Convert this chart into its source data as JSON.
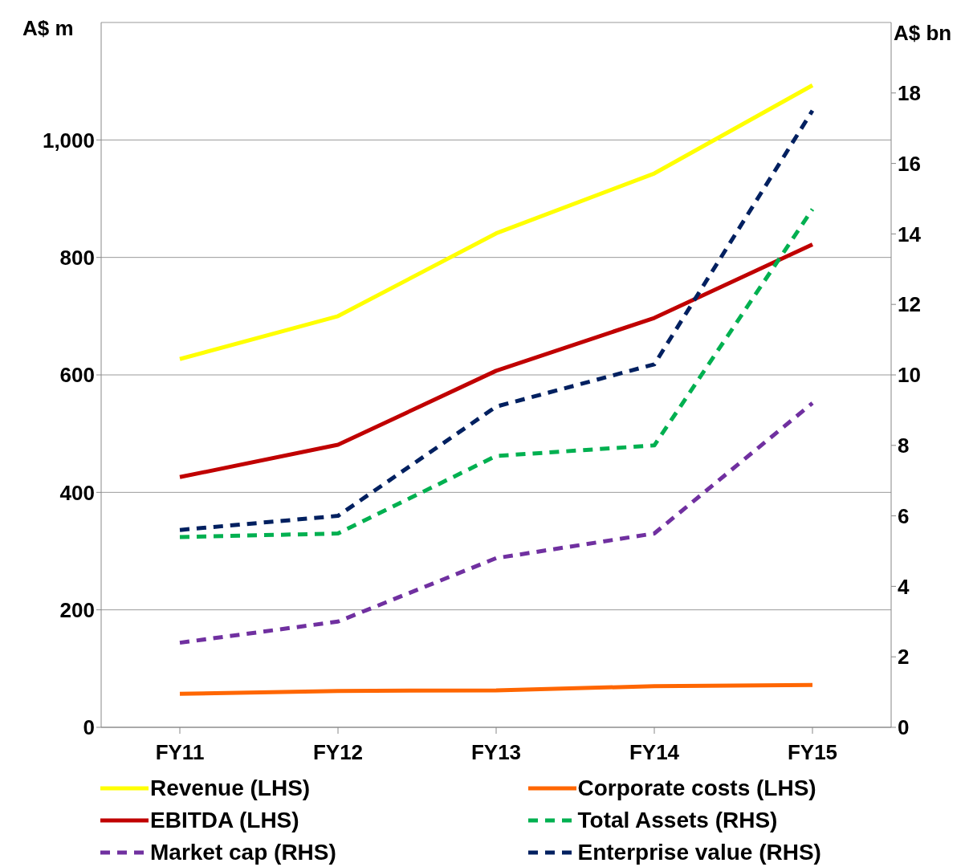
{
  "chart_data": {
    "type": "line",
    "ylabel": "A$ m",
    "y2label": "A$ bn",
    "categories": [
      "FY11",
      "FY12",
      "FY13",
      "FY14",
      "FY15"
    ],
    "series": [
      {
        "name": "Revenue (LHS)",
        "color": "#ffff00",
        "line_style": "solid",
        "values": [
          627,
          700,
          841,
          943,
          1093
        ]
      },
      {
        "name": "Corporate costs (LHS)",
        "color": "#ff6600",
        "line_style": "solid",
        "values": [
          57,
          62,
          63,
          70,
          72
        ]
      },
      {
        "name": "EBITDA (LHS)",
        "color": "#c00000",
        "line_style": "solid",
        "values": [
          426,
          481,
          607,
          697,
          822
        ]
      },
      {
        "name": "Total Assets (RHS)",
        "color": "#00b050",
        "line_style": "dashed",
        "axis": "y2",
        "values": [
          5.4,
          5.5,
          7.7,
          8.0,
          14.7
        ]
      },
      {
        "name": "Market cap (RHS)",
        "color": "#7030a0",
        "line_style": "dashed",
        "axis": "y2",
        "values": [
          2.4,
          3.0,
          4.8,
          5.5,
          9.2
        ]
      },
      {
        "name": "Enterprise value (RHS)",
        "color": "#002060",
        "line_style": "dashed",
        "axis": "y2",
        "values": [
          5.6,
          6.0,
          9.1,
          10.3,
          17.5
        ]
      }
    ],
    "ylim": [
      0,
      1200
    ],
    "yticks": [
      0,
      200,
      400,
      600,
      800,
      {
        "value": 1000,
        "label": "1,000"
      }
    ],
    "y2lim": [
      0,
      20
    ],
    "y2ticks": [
      0,
      2,
      4,
      6,
      8,
      10,
      12,
      14,
      16,
      18
    ],
    "grid": "y",
    "legend": "bottom",
    "marker": "none"
  }
}
